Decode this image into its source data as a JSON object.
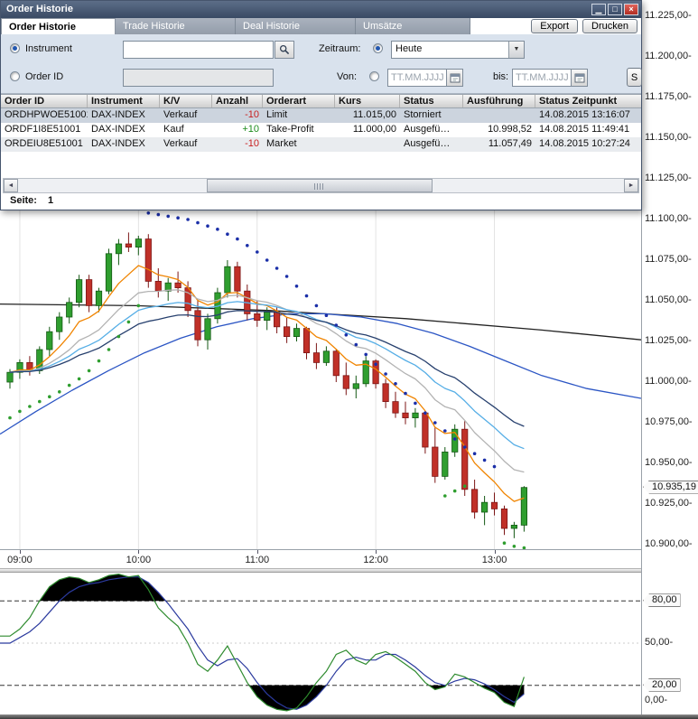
{
  "window": {
    "title": "Order Historie",
    "controls": {
      "minimize": "▁",
      "maximize": "□",
      "close": "×"
    },
    "tabs": [
      {
        "label": "Order Historie",
        "active": true
      },
      {
        "label": "Trade Historie",
        "active": false
      },
      {
        "label": "Deal Historie",
        "active": false
      },
      {
        "label": "Umsätze",
        "active": false
      }
    ],
    "buttons": {
      "export": "Export",
      "print": "Drucken"
    },
    "filters": {
      "instrument_radio_label": "Instrument",
      "order_id_radio_label": "Order ID",
      "zeitraum_label": "Zeitraum:",
      "zeitraum_value": "Heute",
      "von_label": "Von:",
      "bis_label": "bis:",
      "date_placeholder": "TT.MM.JJJJ",
      "search_button_label": "S"
    },
    "table": {
      "columns": [
        "Order ID",
        "Instrument",
        "K/V",
        "Anzahl",
        "Orderart",
        "Kurs",
        "Status",
        "Ausführung",
        "Status Zeitpunkt"
      ],
      "rows": [
        {
          "cells": [
            "ORDHPWOE51001",
            "DAX-INDEX",
            "Verkauf",
            "-10",
            "Limit",
            "11.015,00",
            "Storniert",
            "",
            "14.08.2015 13:16:07"
          ],
          "qty_color": "neg"
        },
        {
          "cells": [
            "ORDF1I8E51001",
            "DAX-INDEX",
            "Kauf",
            "+10",
            "Take-Profit",
            "11.000,00",
            "Ausgefü…",
            "10.998,52",
            "14.08.2015 11:49:41"
          ],
          "qty_color": "pos"
        },
        {
          "cells": [
            "ORDEIU8E51001",
            "DAX-INDEX",
            "Verkauf",
            "-10",
            "Market",
            "",
            "Ausgefü…",
            "11.057,49",
            "14.08.2015 10:27:24"
          ],
          "qty_color": "neg"
        }
      ]
    },
    "pagination": {
      "label": "Seite:",
      "value": "1"
    }
  },
  "icons": {
    "dropdown": "▼",
    "scroll_left": "◄",
    "scroll_right": "►",
    "search": "magnifier",
    "calendar": "calendar"
  },
  "chart_data": {
    "type": "candlestick+indicators",
    "main": {
      "interval_minutes": 5,
      "first_candle_time": "08:55",
      "candle_up": "#2f9e2f",
      "candle_down": "#c03028",
      "candles": [
        [
          11000,
          11008,
          10996,
          11006
        ],
        [
          11006,
          11014,
          11002,
          11012
        ],
        [
          11012,
          11016,
          11004,
          11007
        ],
        [
          11007,
          11022,
          11005,
          11020
        ],
        [
          11020,
          11034,
          11016,
          11031
        ],
        [
          11031,
          11043,
          11026,
          11040
        ],
        [
          11040,
          11052,
          11036,
          11049
        ],
        [
          11049,
          11066,
          11046,
          11063
        ],
        [
          11063,
          11066,
          11043,
          11047
        ],
        [
          11047,
          11058,
          11043,
          11056
        ],
        [
          11056,
          11082,
          11054,
          11079
        ],
        [
          11079,
          11088,
          11072,
          11085
        ],
        [
          11085,
          11092,
          11080,
          11083
        ],
        [
          11083,
          11090,
          11078,
          11088
        ],
        [
          11088,
          11091,
          11058,
          11062
        ],
        [
          11062,
          11070,
          11052,
          11056
        ],
        [
          11056,
          11064,
          11050,
          11061
        ],
        [
          11061,
          11068,
          11055,
          11058
        ],
        [
          11058,
          11062,
          11040,
          11044
        ],
        [
          11044,
          11050,
          11022,
          11026
        ],
        [
          11026,
          11042,
          11020,
          11039
        ],
        [
          11039,
          11058,
          11036,
          11055
        ],
        [
          11055,
          11075,
          11052,
          11071
        ],
        [
          11071,
          11074,
          11052,
          11056
        ],
        [
          11056,
          11060,
          11038,
          11042
        ],
        [
          11042,
          11050,
          11034,
          11038
        ],
        [
          11038,
          11046,
          11032,
          11043
        ],
        [
          11043,
          11046,
          11030,
          11034
        ],
        [
          11034,
          11040,
          11024,
          11028
        ],
        [
          11028,
          11036,
          11025,
          11033
        ],
        [
          11033,
          11034,
          11014,
          11018
        ],
        [
          11018,
          11024,
          11008,
          11012
        ],
        [
          11012,
          11022,
          11010,
          11019
        ],
        [
          11019,
          11020,
          11000,
          11004
        ],
        [
          11004,
          11012,
          10992,
          10996
        ],
        [
          10996,
          11004,
          10990,
          10999
        ],
        [
          10999,
          11016,
          10997,
          11013
        ],
        [
          11013,
          11014,
          10996,
          10999
        ],
        [
          10999,
          11002,
          10984,
          10988
        ],
        [
          10988,
          10994,
          10978,
          10981
        ],
        [
          10981,
          10988,
          10974,
          10978
        ],
        [
          10978,
          10984,
          10972,
          10981
        ],
        [
          10981,
          10982,
          10956,
          10960
        ],
        [
          10960,
          10972,
          10938,
          10942
        ],
        [
          10942,
          10960,
          10940,
          10957
        ],
        [
          10957,
          10974,
          10954,
          10971
        ],
        [
          10971,
          10976,
          10930,
          10934
        ],
        [
          10934,
          10940,
          10916,
          10920
        ],
        [
          10920,
          10930,
          10912,
          10926
        ],
        [
          10926,
          10932,
          10918,
          10922
        ],
        [
          10922,
          10924,
          10906,
          10910
        ],
        [
          10910,
          10914,
          10904,
          10912
        ],
        [
          10912,
          10936,
          10908,
          10935.19
        ]
      ],
      "time_ticks": {
        "labels": [
          "09:00",
          "10:00",
          "11:00",
          "12:00",
          "13:00"
        ],
        "candle_indices": [
          1,
          13,
          25,
          37,
          49
        ]
      },
      "price_axis": {
        "max": 11225,
        "min": 10900,
        "step": 25,
        "tick_suffix": "-"
      },
      "last_price": {
        "label": "10.935,19",
        "value": 10935.19
      },
      "moving_averages": [
        {
          "period": 7,
          "color": "#f08400"
        },
        {
          "period": 14,
          "color": "#b3b3b3"
        },
        {
          "period": 21,
          "color": "#56aee6"
        },
        {
          "period": 30,
          "color": "#27406e"
        }
      ],
      "overlay_lines": {
        "black": [
          [
            0,
            11048
          ],
          [
            150,
            11047
          ],
          [
            300,
            11044
          ],
          [
            450,
            11039
          ],
          [
            600,
            11032
          ],
          [
            710,
            11026
          ]
        ],
        "blue": [
          [
            0,
            10968
          ],
          [
            40,
            10982
          ],
          [
            80,
            10995
          ],
          [
            120,
            11007
          ],
          [
            160,
            11018
          ],
          [
            200,
            11027
          ],
          [
            240,
            11034
          ],
          [
            280,
            11039
          ],
          [
            320,
            11042
          ],
          [
            360,
            11042
          ],
          [
            400,
            11040
          ],
          [
            440,
            11036
          ],
          [
            480,
            11030
          ],
          [
            520,
            11022
          ],
          [
            560,
            11013
          ],
          [
            600,
            11004
          ],
          [
            650,
            10996
          ],
          [
            710,
            10990
          ]
        ]
      },
      "sar_dots": {
        "blue": {
          "start_index": 14,
          "values": [
            11104,
            11103,
            11102,
            11101,
            11100,
            11098,
            11096,
            11094,
            11091,
            11088,
            11084,
            11080,
            11075,
            11070,
            11065,
            11059,
            11053,
            11047,
            11041,
            11035,
            11029,
            11023,
            11017,
            11011,
            11005,
            10999,
            10993,
            10987,
            10981,
            10975,
            10970,
            10965,
            10960,
            10956,
            10952,
            10948
          ]
        },
        "green_segments": [
          {
            "start_index": 0,
            "values": [
              10978,
              10982,
              10985,
              10988,
              10991,
              10994,
              10998,
              11002,
              11007,
              11013,
              11020,
              11028,
              11037,
              11047
            ]
          },
          {
            "start_index": 44,
            "values": [
              10930,
              10933,
              10936
            ]
          },
          {
            "start_index": 50,
            "values": [
              10901,
              10899,
              10898
            ]
          }
        ]
      }
    },
    "stochastic": {
      "k_color": "#2e8b2e",
      "d_color": "#2b3a9e",
      "fill_color": "#000000",
      "thresholds": {
        "upper": 80,
        "mid": 50,
        "lower": 20
      },
      "k": [
        55,
        60,
        68,
        80,
        90,
        95,
        97,
        96,
        93,
        95,
        98,
        99,
        97,
        98,
        88,
        75,
        68,
        62,
        50,
        35,
        30,
        38,
        48,
        35,
        22,
        12,
        6,
        3,
        2,
        4,
        12,
        22,
        30,
        42,
        45,
        38,
        35,
        42,
        44,
        40,
        35,
        30,
        22,
        17,
        19,
        28,
        26,
        22,
        18,
        15,
        8,
        5,
        26
      ],
      "d": [
        50,
        54,
        58,
        64,
        72,
        80,
        86,
        90,
        92,
        93,
        95,
        96,
        97,
        97,
        93,
        86,
        78,
        69,
        60,
        48,
        38,
        34,
        38,
        39,
        32,
        22,
        14,
        8,
        4,
        3,
        6,
        12,
        20,
        30,
        38,
        40,
        38,
        38,
        42,
        42,
        38,
        33,
        27,
        22,
        20,
        23,
        25,
        24,
        21,
        17,
        12,
        8,
        14
      ],
      "axis_labels": [
        {
          "value": 80,
          "label": "80,00",
          "callout": true
        },
        {
          "value": 50,
          "label": "50,00",
          "callout": false
        },
        {
          "value": 20,
          "label": "20,00",
          "callout": true
        },
        {
          "value": 0,
          "label": "0,00",
          "callout": false
        }
      ]
    }
  }
}
